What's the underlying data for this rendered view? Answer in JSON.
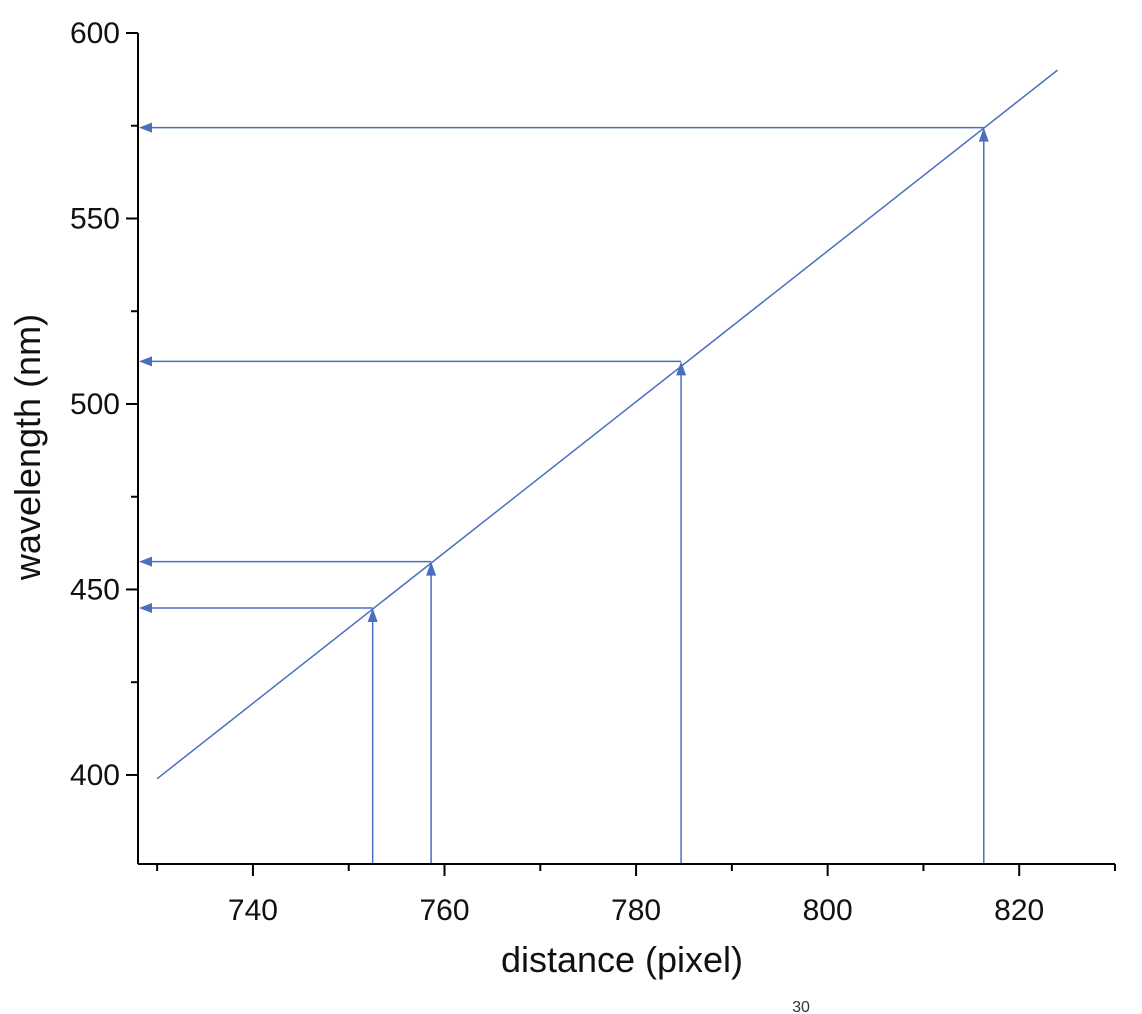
{
  "chart_data": {
    "type": "line",
    "xlabel": "distance (pixel)",
    "ylabel": "wavelength (nm)",
    "xlim": [
      728,
      830
    ],
    "ylim": [
      376,
      600
    ],
    "x_ticks": [
      740,
      760,
      780,
      800,
      820
    ],
    "x_tick_labels": [
      "740",
      "760",
      "780",
      "800",
      "820"
    ],
    "y_ticks": [
      400,
      450,
      500,
      550,
      600
    ],
    "y_tick_labels": [
      "400",
      "450",
      "500",
      "550",
      "600"
    ],
    "grid": false,
    "legend": "none",
    "series": [
      {
        "x": [
          730,
          824
        ],
        "y": [
          399,
          590
        ]
      }
    ],
    "annotations": [
      {
        "x": 752.5,
        "y": 445
      },
      {
        "x": 758.6,
        "y": 457.5
      },
      {
        "x": 784.7,
        "y": 511.5
      },
      {
        "x": 816.3,
        "y": 574.5
      }
    ],
    "line_color": "#4a6fbf",
    "axis_color": "#000000"
  },
  "footer": {
    "page_number": "30"
  }
}
